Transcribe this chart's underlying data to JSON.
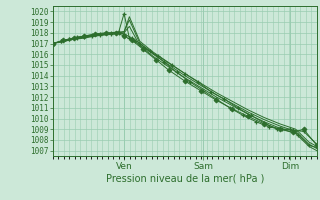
{
  "xlabel": "Pression niveau de la mer( hPa )",
  "ylim": [
    1006.5,
    1020.5
  ],
  "yticks": [
    1007,
    1008,
    1009,
    1010,
    1011,
    1012,
    1013,
    1014,
    1015,
    1016,
    1017,
    1018,
    1019,
    1020
  ],
  "background_color": "#cce8d8",
  "grid_color": "#99ccb0",
  "line_color": "#2d6e2d",
  "marker_color": "#2d6e2d",
  "day_labels": [
    "Ven",
    "Sam",
    "Dim"
  ],
  "day_positions": [
    0.27,
    0.57,
    0.9
  ],
  "lines": [
    {
      "x": [
        0.0,
        0.03,
        0.06,
        0.09,
        0.12,
        0.15,
        0.18,
        0.22,
        0.25,
        0.27,
        0.29,
        0.31,
        0.35,
        0.4,
        0.45,
        0.5,
        0.55,
        0.6,
        0.65,
        0.7,
        0.75,
        0.8,
        0.85,
        0.9,
        0.93,
        0.97,
        1.0
      ],
      "y": [
        1017.0,
        1017.2,
        1017.4,
        1017.6,
        1017.7,
        1017.8,
        1017.9,
        1018.0,
        1018.1,
        1019.8,
        1017.5,
        1017.2,
        1016.5,
        1015.8,
        1015.0,
        1014.2,
        1013.4,
        1012.5,
        1011.8,
        1011.0,
        1010.3,
        1009.6,
        1009.0,
        1009.0,
        1008.5,
        1007.5,
        1007.3
      ],
      "has_markers": true,
      "marker": "+"
    },
    {
      "x": [
        0.0,
        0.04,
        0.08,
        0.12,
        0.16,
        0.2,
        0.24,
        0.27,
        0.29,
        0.33,
        0.38,
        0.44,
        0.5,
        0.56,
        0.62,
        0.68,
        0.74,
        0.8,
        0.86,
        0.92,
        0.97,
        1.0
      ],
      "y": [
        1017.0,
        1017.2,
        1017.4,
        1017.6,
        1017.8,
        1017.9,
        1018.0,
        1018.1,
        1019.2,
        1017.0,
        1016.0,
        1015.0,
        1014.0,
        1013.1,
        1012.2,
        1011.4,
        1010.6,
        1009.9,
        1009.3,
        1008.8,
        1007.6,
        1007.2
      ],
      "has_markers": false
    },
    {
      "x": [
        0.0,
        0.04,
        0.08,
        0.12,
        0.16,
        0.2,
        0.24,
        0.27,
        0.29,
        0.33,
        0.38,
        0.44,
        0.5,
        0.56,
        0.62,
        0.68,
        0.74,
        0.8,
        0.86,
        0.92,
        0.97,
        1.0
      ],
      "y": [
        1017.0,
        1017.2,
        1017.4,
        1017.6,
        1017.8,
        1017.9,
        1018.0,
        1018.1,
        1019.5,
        1017.2,
        1016.2,
        1015.2,
        1014.2,
        1013.3,
        1012.4,
        1011.6,
        1010.8,
        1010.1,
        1009.5,
        1009.0,
        1007.8,
        1007.4
      ],
      "has_markers": false
    },
    {
      "x": [
        0.0,
        0.04,
        0.08,
        0.12,
        0.16,
        0.2,
        0.24,
        0.27,
        0.29,
        0.33,
        0.38,
        0.44,
        0.5,
        0.56,
        0.62,
        0.68,
        0.74,
        0.8,
        0.86,
        0.92,
        0.97,
        1.0
      ],
      "y": [
        1017.0,
        1017.2,
        1017.4,
        1017.5,
        1017.7,
        1017.8,
        1017.9,
        1018.0,
        1018.6,
        1016.8,
        1015.8,
        1014.8,
        1013.8,
        1012.9,
        1012.0,
        1011.2,
        1010.4,
        1009.7,
        1009.1,
        1008.6,
        1007.4,
        1007.0
      ],
      "has_markers": false
    },
    {
      "x": [
        0.0,
        0.03,
        0.06,
        0.09,
        0.12,
        0.15,
        0.18,
        0.22,
        0.25,
        0.27,
        0.3,
        0.33,
        0.37,
        0.42,
        0.47,
        0.52,
        0.57,
        0.62,
        0.67,
        0.72,
        0.77,
        0.82,
        0.87,
        0.91,
        0.95,
        1.0
      ],
      "y": [
        1017.0,
        1017.2,
        1017.4,
        1017.5,
        1017.6,
        1017.7,
        1017.8,
        1017.9,
        1018.0,
        1017.9,
        1017.5,
        1017.0,
        1016.3,
        1015.3,
        1014.3,
        1013.4,
        1012.6,
        1011.8,
        1011.0,
        1010.3,
        1009.7,
        1009.2,
        1009.0,
        1008.9,
        1008.8,
        1007.6
      ],
      "has_markers": true,
      "marker": "+"
    },
    {
      "x": [
        0.0,
        0.04,
        0.08,
        0.12,
        0.16,
        0.2,
        0.24,
        0.27,
        0.3,
        0.34,
        0.39,
        0.44,
        0.5,
        0.56,
        0.62,
        0.68,
        0.74,
        0.8,
        0.86,
        0.91,
        0.95,
        1.0
      ],
      "y": [
        1017.0,
        1017.3,
        1017.5,
        1017.7,
        1017.9,
        1018.0,
        1018.0,
        1017.7,
        1017.3,
        1016.5,
        1015.5,
        1014.5,
        1013.5,
        1012.6,
        1011.7,
        1010.9,
        1010.2,
        1009.5,
        1009.0,
        1008.7,
        1009.0,
        1007.5
      ],
      "has_markers": true,
      "marker": "D"
    }
  ]
}
